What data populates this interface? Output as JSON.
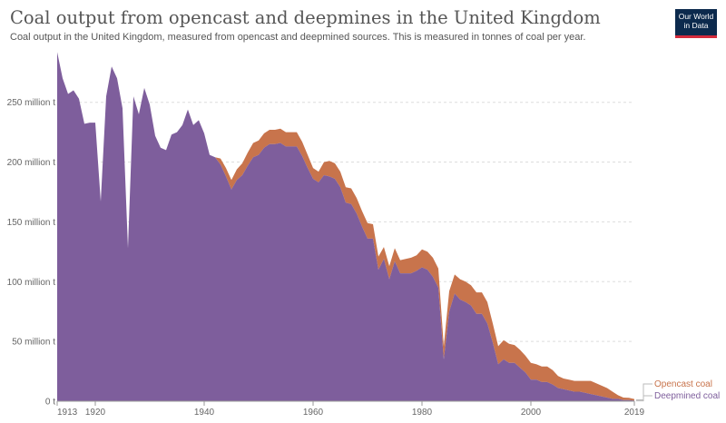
{
  "header": {
    "title": "Coal output from opencast and deepmines in the United Kingdom",
    "subtitle": "Coal output in the United Kingdom, measured from opencast and deepmined sources. This is measured in tonnes of coal per year.",
    "logo_line1": "Our World",
    "logo_line2": "in Data"
  },
  "colors": {
    "deepmined": "#7e5e9c",
    "opencast": "#c8744c",
    "grid": "#dddddd",
    "logo_bg": "#0c2a4d",
    "logo_accent": "#d42b3c"
  },
  "chart_data": {
    "type": "area",
    "stacked": true,
    "xlim": [
      1913,
      2019
    ],
    "ylim": [
      0,
      290
    ],
    "y_unit": "million t",
    "y_ticks": [
      0,
      50,
      100,
      150,
      200,
      250
    ],
    "y_tick_labels": [
      "0 t",
      "50 million t",
      "100 million t",
      "150 million t",
      "200 million t",
      "250 million t"
    ],
    "x_ticks": [
      1913,
      1920,
      1940,
      1960,
      1980,
      2000,
      2019
    ],
    "x_tick_labels": [
      "1913",
      "1920",
      "1940",
      "1960",
      "1980",
      "2000",
      "2019"
    ],
    "grid": "horizontal dashed",
    "legend_position": "right, at series ends",
    "x": [
      1913,
      1914,
      1915,
      1916,
      1917,
      1918,
      1919,
      1920,
      1921,
      1922,
      1923,
      1924,
      1925,
      1926,
      1927,
      1928,
      1929,
      1930,
      1931,
      1932,
      1933,
      1934,
      1935,
      1936,
      1937,
      1938,
      1939,
      1940,
      1941,
      1942,
      1943,
      1944,
      1945,
      1946,
      1947,
      1948,
      1949,
      1950,
      1951,
      1952,
      1953,
      1954,
      1955,
      1956,
      1957,
      1958,
      1959,
      1960,
      1961,
      1962,
      1963,
      1964,
      1965,
      1966,
      1967,
      1968,
      1969,
      1970,
      1971,
      1972,
      1973,
      1974,
      1975,
      1976,
      1977,
      1978,
      1979,
      1980,
      1981,
      1982,
      1983,
      1984,
      1985,
      1986,
      1987,
      1988,
      1989,
      1990,
      1991,
      1992,
      1993,
      1994,
      1995,
      1996,
      1997,
      1998,
      1999,
      2000,
      2001,
      2002,
      2003,
      2004,
      2005,
      2006,
      2007,
      2008,
      2009,
      2010,
      2011,
      2012,
      2013,
      2014,
      2015,
      2016,
      2017,
      2018,
      2019
    ],
    "series": [
      {
        "name": "Deepmined coal",
        "values": [
          292,
          270,
          257,
          260,
          253,
          232,
          233,
          233,
          167,
          255,
          280,
          270,
          245,
          128,
          255,
          240,
          262,
          248,
          222,
          212,
          210,
          223,
          225,
          231,
          244,
          231,
          235,
          224,
          206,
          204,
          198,
          188,
          177,
          185,
          189,
          197,
          204,
          206,
          212,
          215,
          215,
          216,
          213,
          213,
          213,
          205,
          195,
          186,
          183,
          189,
          188,
          186,
          179,
          166,
          165,
          157,
          146,
          136,
          136,
          110,
          119,
          102,
          117,
          107,
          107,
          107,
          109,
          112,
          110,
          104,
          95,
          35,
          75,
          90,
          85,
          83,
          80,
          73,
          73,
          65,
          49,
          31,
          35,
          32,
          32,
          28,
          24,
          18,
          18,
          16,
          16,
          14,
          11,
          10,
          9,
          8,
          8,
          7,
          6,
          5,
          4,
          3,
          2,
          2,
          1,
          1,
          0.5
        ]
      },
      {
        "name": "Opencast coal",
        "values": [
          0,
          0,
          0,
          0,
          0,
          0,
          0,
          0,
          0,
          0,
          0,
          0,
          0,
          0,
          0,
          0,
          0,
          0,
          0,
          0,
          0,
          0,
          0,
          0,
          0,
          0,
          0,
          0,
          0,
          0,
          5,
          7,
          8,
          9,
          10,
          11,
          12,
          12,
          12,
          12,
          12,
          12,
          12,
          12,
          12,
          12,
          11,
          9,
          9,
          11,
          13,
          13,
          13,
          13,
          13,
          13,
          13,
          13,
          12,
          11,
          10,
          11,
          11,
          11,
          12,
          13,
          13,
          15,
          15,
          16,
          16,
          11,
          17,
          16,
          17,
          17,
          17,
          18,
          18,
          18,
          16,
          15,
          16,
          16,
          15,
          15,
          14,
          14,
          13,
          13,
          13,
          12,
          10,
          9,
          9,
          9,
          9,
          10,
          11,
          10,
          9,
          8,
          6,
          3,
          2,
          1.8,
          1.3
        ]
      }
    ],
    "legend": [
      "Opencast coal",
      "Deepmined coal"
    ]
  }
}
